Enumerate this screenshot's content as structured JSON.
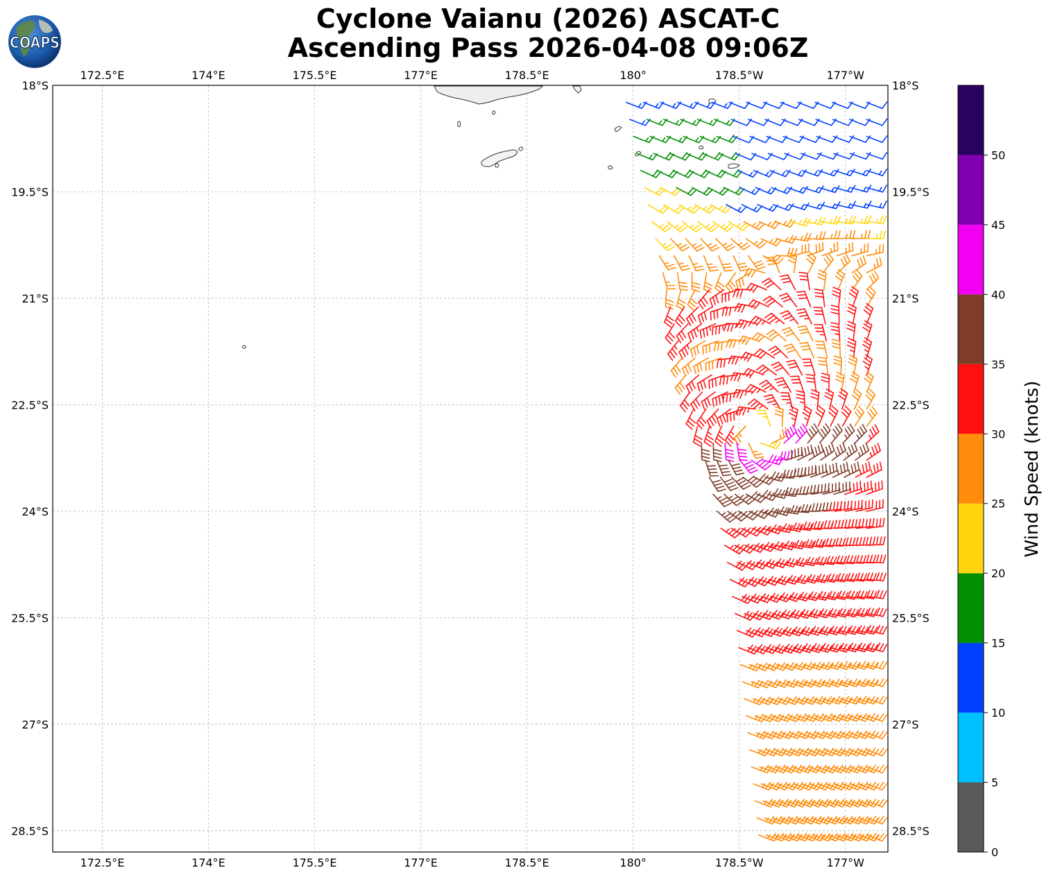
{
  "title": {
    "line1": "Cyclone Vaianu (2026) ASCAT-C",
    "line2": "Ascending Pass 2026-04-08 09:06Z"
  },
  "logo": {
    "text": "COAPS",
    "icon": "globe-icon"
  },
  "map": {
    "lon_range": [
      171.8,
      -176.6
    ],
    "lat_range": [
      -18,
      -28.8
    ],
    "lon_ticks": [
      {
        "value": 172.5,
        "label": "172.5°E"
      },
      {
        "value": 174,
        "label": "174°E"
      },
      {
        "value": 175.5,
        "label": "175.5°E"
      },
      {
        "value": 177,
        "label": "177°E"
      },
      {
        "value": 178.5,
        "label": "178.5°E"
      },
      {
        "value": 180,
        "label": "180°"
      },
      {
        "value": -178.5,
        "label": "178.5°W"
      },
      {
        "value": -177,
        "label": "177°W"
      }
    ],
    "lat_ticks": [
      {
        "value": -18,
        "label": "18°S"
      },
      {
        "value": -19.5,
        "label": "19.5°S"
      },
      {
        "value": -21,
        "label": "21°S"
      },
      {
        "value": -22.5,
        "label": "22.5°S"
      },
      {
        "value": -24,
        "label": "24°S"
      },
      {
        "value": -25.5,
        "label": "25.5°S"
      },
      {
        "value": -27,
        "label": "27°S"
      },
      {
        "value": -28.5,
        "label": "28.5°S"
      }
    ],
    "grid": true,
    "land_features": [
      "Fiji islands",
      "small island 174.6E 21.7S"
    ]
  },
  "colorbar": {
    "label": "Wind Speed (knots)",
    "ticks": [
      "0",
      "5",
      "10",
      "15",
      "20",
      "25",
      "30",
      "35",
      "40",
      "45",
      "50"
    ],
    "bins": [
      {
        "min": 0,
        "max": 5,
        "color": "#595959"
      },
      {
        "min": 5,
        "max": 10,
        "color": "#00bfff"
      },
      {
        "min": 10,
        "max": 15,
        "color": "#0040ff"
      },
      {
        "min": 15,
        "max": 20,
        "color": "#009000"
      },
      {
        "min": 20,
        "max": 25,
        "color": "#ffd50f"
      },
      {
        "min": 25,
        "max": 30,
        "color": "#ff8c0a"
      },
      {
        "min": 30,
        "max": 35,
        "color": "#ff1010"
      },
      {
        "min": 35,
        "max": 40,
        "color": "#7f3c28"
      },
      {
        "min": 40,
        "max": 45,
        "color": "#f200f2"
      },
      {
        "min": 45,
        "max": 50,
        "color": "#8000b0"
      },
      {
        "min": 50,
        "max": 55,
        "color": "#2a0060"
      }
    ]
  },
  "chart_data": {
    "type": "wind-barbs",
    "title": "Cyclone Vaianu (2026) ASCAT-C Ascending Pass 2026-04-08 09:06Z",
    "units": "knots",
    "swath": {
      "rows": 45,
      "cols": 15,
      "lat_start": -18.0,
      "lat_step": -0.24,
      "lon_west_by_lat": [
        [
          -18.0,
          179.85
        ],
        [
          -21.0,
          180.5
        ],
        [
          -24.5,
          -178.7
        ],
        [
          -25.5,
          -178.55
        ],
        [
          -28.8,
          -178.2
        ]
      ],
      "lon_east": -176.6
    },
    "cyclone_center": {
      "lon": -178.2,
      "lat": -22.9
    },
    "wind_speed_regions_knots": [
      {
        "region": "north of 19.5°S, east of 178.5°W",
        "speed": "10-20"
      },
      {
        "region": "19.5°S-21°S",
        "speed": "20-30"
      },
      {
        "region": "22.5°S-25.5°S near center",
        "speed": "30-45"
      },
      {
        "region": "south of 26°S",
        "speed": "25-30"
      }
    ]
  }
}
